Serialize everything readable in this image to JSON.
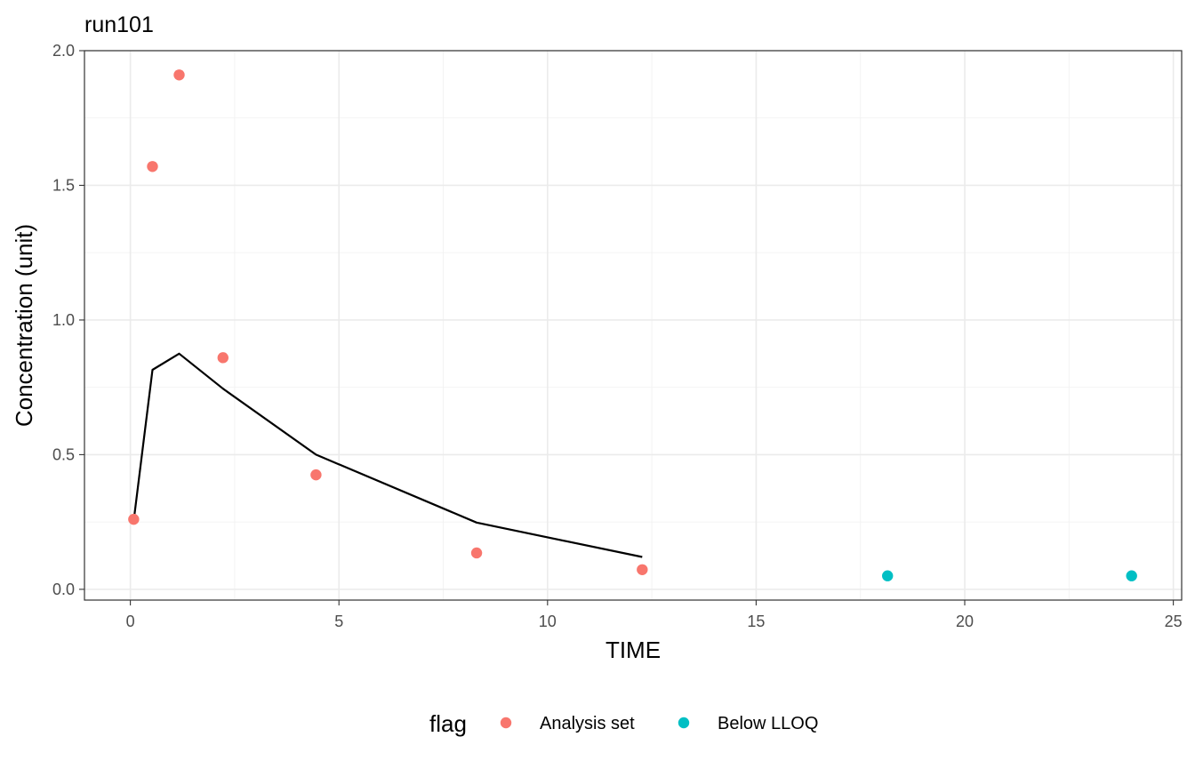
{
  "chart_data": {
    "type": "scatter",
    "title": "run101",
    "xlabel": "TIME",
    "ylabel": "Concentration (unit)",
    "xlim": [
      -1.1,
      25.2
    ],
    "ylim": [
      -0.04,
      2.0
    ],
    "x_ticks": [
      0,
      5,
      10,
      15,
      20,
      25
    ],
    "y_ticks": [
      0.0,
      0.5,
      1.0,
      1.5,
      2.0
    ],
    "x_tick_labels": [
      "0",
      "5",
      "10",
      "15",
      "20",
      "25"
    ],
    "y_tick_labels": [
      "0.0",
      "0.5",
      "1.0",
      "1.5",
      "2.0"
    ],
    "grid": true,
    "legend": {
      "title": "flag",
      "position": "bottom",
      "entries": [
        {
          "label": "Analysis set",
          "color": "#F8766D"
        },
        {
          "label": "Below LLOQ",
          "color": "#00BFC4"
        }
      ]
    },
    "series": [
      {
        "name": "Analysis set",
        "kind": "points",
        "color": "#F8766D",
        "x": [
          0.08,
          0.53,
          1.17,
          2.22,
          4.45,
          8.3,
          12.27
        ],
        "y": [
          0.26,
          1.57,
          1.91,
          0.86,
          0.425,
          0.135,
          0.073
        ]
      },
      {
        "name": "Below LLOQ",
        "kind": "points",
        "color": "#00BFC4",
        "x": [
          18.15,
          24.0
        ],
        "y": [
          0.05,
          0.05
        ]
      },
      {
        "kind": "line",
        "color": "#000000",
        "x": [
          0.08,
          0.53,
          1.17,
          2.22,
          4.45,
          8.3,
          12.27
        ],
        "y": [
          0.255,
          0.815,
          0.875,
          0.745,
          0.5,
          0.248,
          0.12
        ]
      }
    ]
  }
}
